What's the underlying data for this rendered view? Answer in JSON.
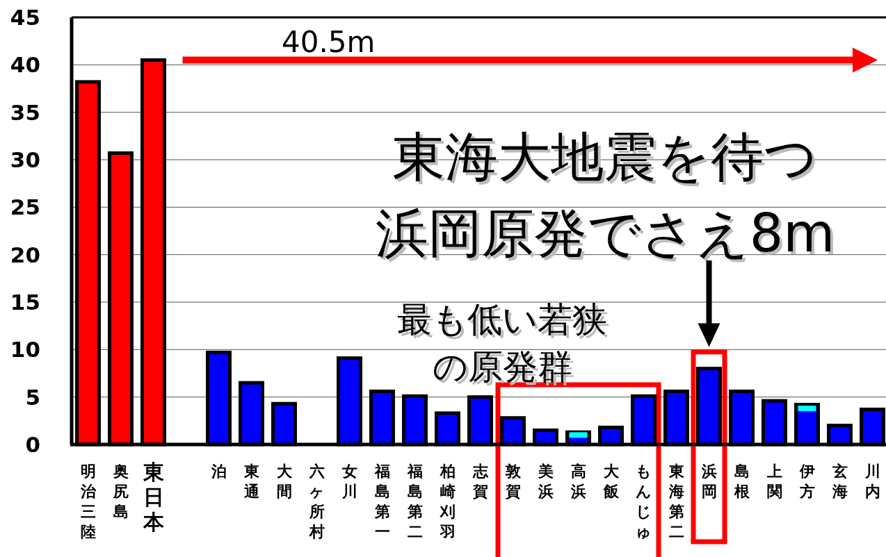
{
  "chart_data": {
    "type": "bar",
    "categories": [
      "明治三陸",
      "奥尻島",
      "東日本",
      null,
      "泊",
      "東通",
      "大間",
      "六ヶ所村",
      "女川",
      "福島第一",
      "福島第二",
      "柏崎刈羽",
      "志賀",
      "敦賀",
      "美浜",
      "高浜",
      "大飯",
      "もんじゅ",
      "東海第二",
      "浜岡",
      "島根",
      "上関",
      "伊方",
      "玄海",
      "川内"
    ],
    "series": [
      {
        "type": "bar",
        "values": [
          38.2,
          30.7,
          40.5,
          null,
          9.7,
          6.5,
          4.3,
          null,
          9.1,
          5.6,
          5.1,
          3.3,
          5.0,
          2.8,
          1.5,
          1.3,
          1.8,
          5.1,
          5.6,
          8.0,
          5.6,
          4.6,
          4.2,
          2.0,
          3.7
        ],
        "colors": [
          "#ff0000",
          "#ff0000",
          "#ff0000",
          null,
          "#0000ff",
          "#0000ff",
          "#0000ff",
          null,
          "#0000ff",
          "#0000ff",
          "#0000ff",
          "#0000ff",
          "#0000ff",
          "#0000ff",
          "#0000ff",
          "#0000ff",
          "#0000ff",
          "#0000ff",
          "#0000ff",
          "#0000ff",
          "#0000ff",
          "#0000ff",
          "#0000ff",
          "#0000ff",
          "#0000ff"
        ]
      },
      {
        "type": "scatter",
        "color": "#00ffff",
        "values": [
          null,
          null,
          null,
          null,
          null,
          null,
          null,
          null,
          null,
          null,
          null,
          null,
          null,
          null,
          null,
          1.0,
          null,
          null,
          null,
          null,
          null,
          null,
          3.8,
          null,
          null
        ]
      }
    ],
    "ylim": [
      0,
      45
    ],
    "yticks": [
      0,
      5,
      10,
      15,
      20,
      25,
      30,
      35,
      40,
      45
    ],
    "grid": "y",
    "ref_lines": [
      {
        "axis": "y",
        "value": 40.5,
        "label": "40.5m",
        "color": "#ff0000"
      }
    ],
    "annotations": [
      {
        "text": "東海大地震を待つ浜岡原発でさえ8m",
        "x": "浜岡",
        "y": 8.0
      },
      "最も低い若狭の原発群"
    ]
  }
}
